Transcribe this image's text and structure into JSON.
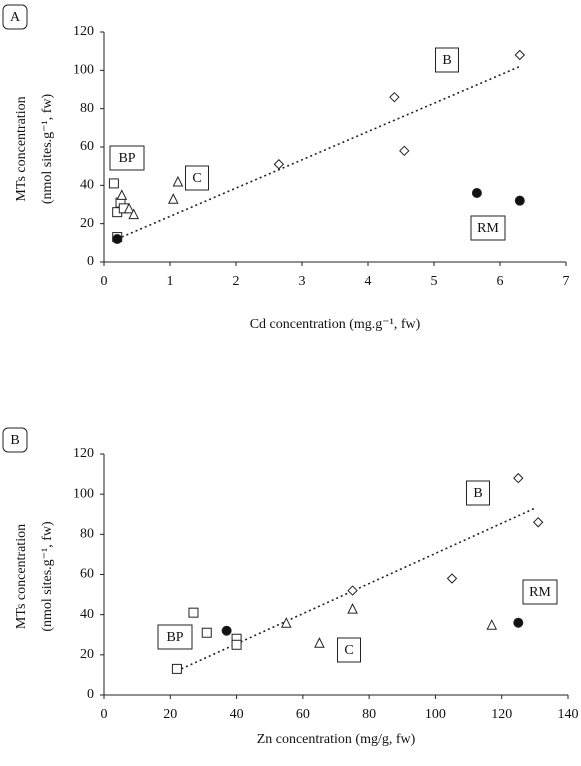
{
  "chart_data": [
    {
      "type": "scatter",
      "panel_label": "A",
      "x_label": "Cd concentration (mg.g⁻¹, fw)",
      "y_label": [
        "MTs concentration",
        "(nmol sites.g⁻¹, fw)"
      ],
      "xlim": [
        0,
        7
      ],
      "xticks": [
        0,
        1,
        2,
        3,
        4,
        5,
        6,
        7
      ],
      "ylim": [
        0,
        120
      ],
      "yticks": [
        0,
        20,
        40,
        60,
        80,
        100,
        120
      ],
      "series": [
        {
          "label": "BP",
          "marker": "square",
          "filled": false,
          "x": [
            0.15,
            0.25,
            0.2,
            0.3,
            0.2
          ],
          "values": [
            41,
            31,
            26,
            28,
            13
          ]
        },
        {
          "label": "C",
          "marker": "triangle",
          "filled": false,
          "x": [
            0.27,
            0.38,
            0.45,
            1.05,
            1.12
          ],
          "values": [
            35,
            28,
            25,
            33,
            42
          ]
        },
        {
          "label": "B",
          "marker": "diamond",
          "filled": false,
          "x": [
            2.65,
            4.4,
            4.55,
            6.3
          ],
          "values": [
            51,
            86,
            58,
            108
          ]
        },
        {
          "label": "RM",
          "marker": "circle",
          "filled": true,
          "x": [
            5.65,
            6.3,
            0.2
          ],
          "values": [
            36,
            32,
            12
          ]
        }
      ],
      "trendline": {
        "x": [
          0.2,
          6.3
        ],
        "values": [
          12,
          102
        ]
      }
    },
    {
      "type": "scatter",
      "panel_label": "B",
      "x_label": "Zn concentration (mg/g, fw)",
      "y_label": [
        "MTs concentration",
        "(nmol sites.g⁻¹, fw)"
      ],
      "xlim": [
        0,
        140
      ],
      "xticks": [
        0,
        20,
        40,
        60,
        80,
        100,
        120,
        140
      ],
      "ylim": [
        0,
        120
      ],
      "yticks": [
        0,
        20,
        40,
        60,
        80,
        100,
        120
      ],
      "series": [
        {
          "label": "BP",
          "marker": "square",
          "filled": false,
          "x": [
            27,
            31,
            40,
            40,
            22
          ],
          "values": [
            41,
            31,
            28,
            25,
            13
          ]
        },
        {
          "label": "C",
          "marker": "triangle",
          "filled": false,
          "x": [
            55,
            65,
            75,
            117
          ],
          "values": [
            36,
            26,
            43,
            35
          ]
        },
        {
          "label": "B",
          "marker": "diamond",
          "filled": false,
          "x": [
            75,
            105,
            125,
            131
          ],
          "values": [
            52,
            58,
            108,
            86
          ]
        },
        {
          "label": "RM",
          "marker": "circle",
          "filled": true,
          "x": [
            37,
            125
          ],
          "values": [
            32,
            36
          ]
        }
      ],
      "trendline": {
        "x": [
          22,
          130
        ],
        "values": [
          12,
          93
        ]
      }
    }
  ]
}
